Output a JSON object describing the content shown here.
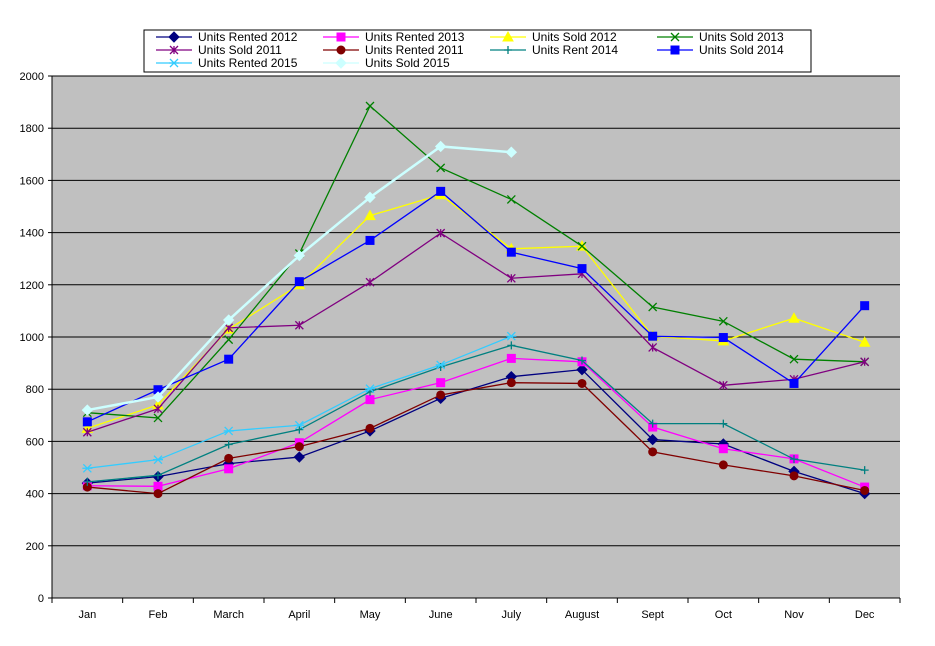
{
  "chart_data": {
    "type": "line",
    "title": "",
    "xlabel": "",
    "ylabel": "",
    "categories": [
      "Jan",
      "Feb",
      "March",
      "April",
      "May",
      "June",
      "July",
      "August",
      "Sept",
      "Oct",
      "Nov",
      "Dec"
    ],
    "ylim": [
      0,
      2000
    ],
    "yticks": [
      0,
      200,
      400,
      600,
      800,
      1000,
      1200,
      1400,
      1600,
      1800,
      2000
    ],
    "grid": true,
    "legend_position": "top",
    "plot_background": "#c0c0c0",
    "series": [
      {
        "name": "Units Rented 2012",
        "color": "#000080",
        "marker": "diamond",
        "values": [
          440,
          465,
          515,
          540,
          640,
          765,
          848,
          875,
          607,
          590,
          485,
          400
        ]
      },
      {
        "name": "Units Rented 2013",
        "color": "#ff00ff",
        "marker": "square",
        "values": [
          430,
          428,
          495,
          595,
          760,
          825,
          918,
          905,
          655,
          572,
          533,
          425
        ]
      },
      {
        "name": "Units Sold 2012",
        "color": "#ffff00",
        "marker": "triangle",
        "values": [
          650,
          740,
          1030,
          1200,
          1465,
          1545,
          1338,
          1348,
          1003,
          985,
          1072,
          980
        ]
      },
      {
        "name": "Units Sold 2013",
        "color": "#008000",
        "marker": "x",
        "values": [
          710,
          690,
          990,
          1320,
          1885,
          1648,
          1527,
          1348,
          1115,
          1060,
          915,
          905
        ]
      },
      {
        "name": "Units Sold 2011",
        "color": "#800080",
        "marker": "star",
        "values": [
          635,
          725,
          1035,
          1045,
          1210,
          1398,
          1225,
          1242,
          960,
          815,
          838,
          905
        ]
      },
      {
        "name": "Units Rented 2011",
        "color": "#800000",
        "marker": "circle",
        "values": [
          425,
          400,
          535,
          580,
          650,
          778,
          825,
          822,
          560,
          510,
          468,
          412
        ]
      },
      {
        "name": "Units Rent 2014",
        "color": "#008080",
        "marker": "plus",
        "values": [
          445,
          470,
          588,
          645,
          790,
          885,
          968,
          910,
          668,
          668,
          532,
          490
        ]
      },
      {
        "name": "Units Sold 2014",
        "color": "#0000ff",
        "marker": "square",
        "values": [
          675,
          798,
          915,
          1212,
          1370,
          1558,
          1325,
          1262,
          1003,
          998,
          822,
          1120
        ]
      },
      {
        "name": "Units Rented 2015",
        "color": "#33ccff",
        "marker": "asterisk",
        "values": [
          497,
          530,
          640,
          662,
          802,
          893,
          1003,
          null,
          null,
          null,
          null,
          null
        ]
      },
      {
        "name": "Units Sold 2015",
        "color": "#ccffff",
        "marker": "diamond",
        "values": [
          720,
          770,
          1065,
          1312,
          1535,
          1730,
          1708,
          null,
          null,
          null,
          null,
          null
        ]
      }
    ]
  }
}
